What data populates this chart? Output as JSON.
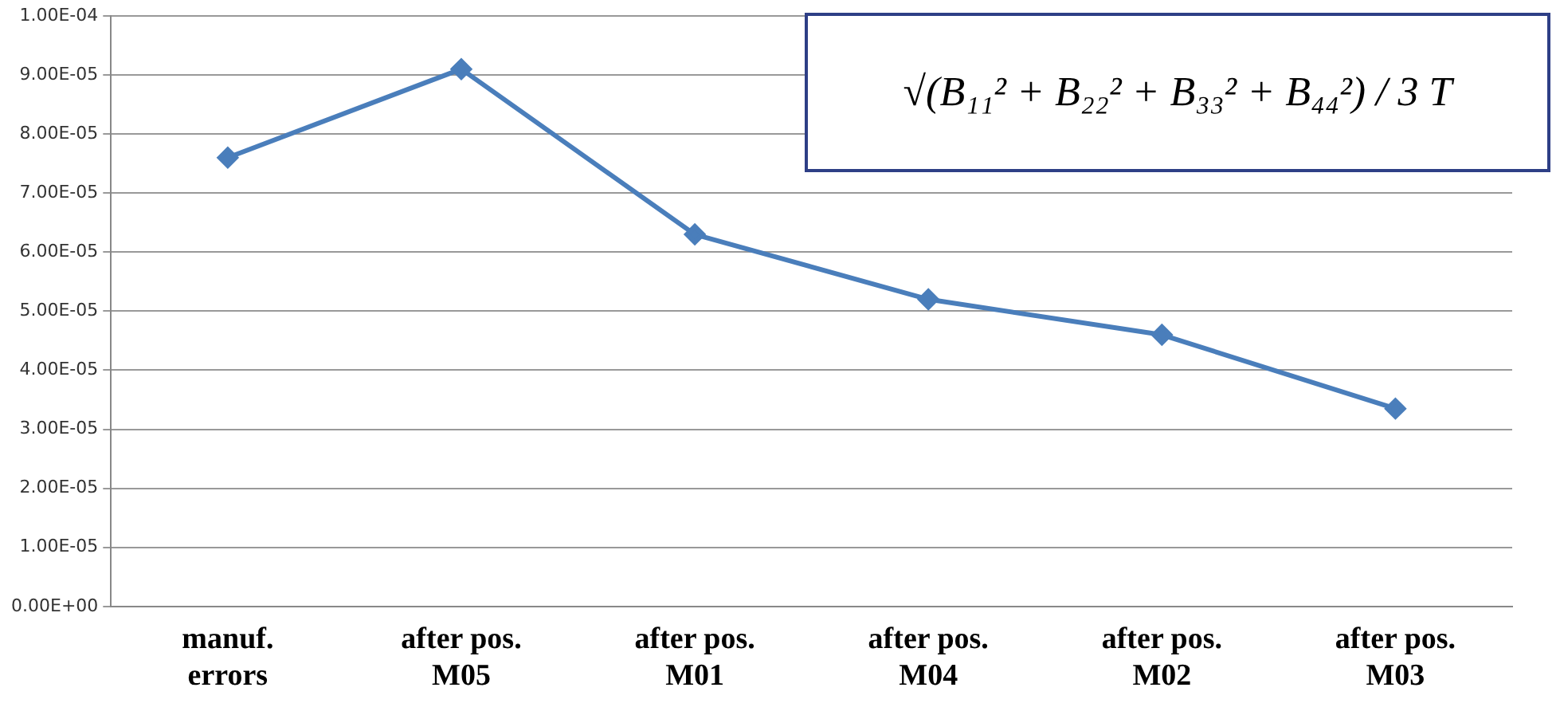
{
  "chart_data": {
    "type": "line",
    "categories": [
      "manuf. errors",
      "after pos. M05",
      "after pos. M01",
      "after pos. M04",
      "after pos. M02",
      "after pos. M03"
    ],
    "series": [
      {
        "color": "#4a7ebb",
        "values": [
          7.6e-05,
          9.1e-05,
          6.3e-05,
          5.2e-05,
          4.6e-05,
          3.35e-05
        ]
      }
    ],
    "ylim": [
      0,
      0.0001
    ],
    "yticks": [
      {
        "value": 0,
        "label": "0.00E+00"
      },
      {
        "value": 1e-05,
        "label": "1.00E-05"
      },
      {
        "value": 2e-05,
        "label": "2.00E-05"
      },
      {
        "value": 3e-05,
        "label": "3.00E-05"
      },
      {
        "value": 4e-05,
        "label": "4.00E-05"
      },
      {
        "value": 5e-05,
        "label": "5.00E-05"
      },
      {
        "value": 6e-05,
        "label": "6.00E-05"
      },
      {
        "value": 7e-05,
        "label": "7.00E-05"
      },
      {
        "value": 8e-05,
        "label": "8.00E-05"
      },
      {
        "value": 9e-05,
        "label": "9.00E-05"
      },
      {
        "value": 0.0001,
        "label": "1.00E-04"
      }
    ],
    "grid": "y",
    "marker": "diamond",
    "line_style": "solid",
    "annotations": [
      "√(B₁₁² + B₂₂² + B₃₃² + B₄₄²) / 3 T"
    ]
  }
}
